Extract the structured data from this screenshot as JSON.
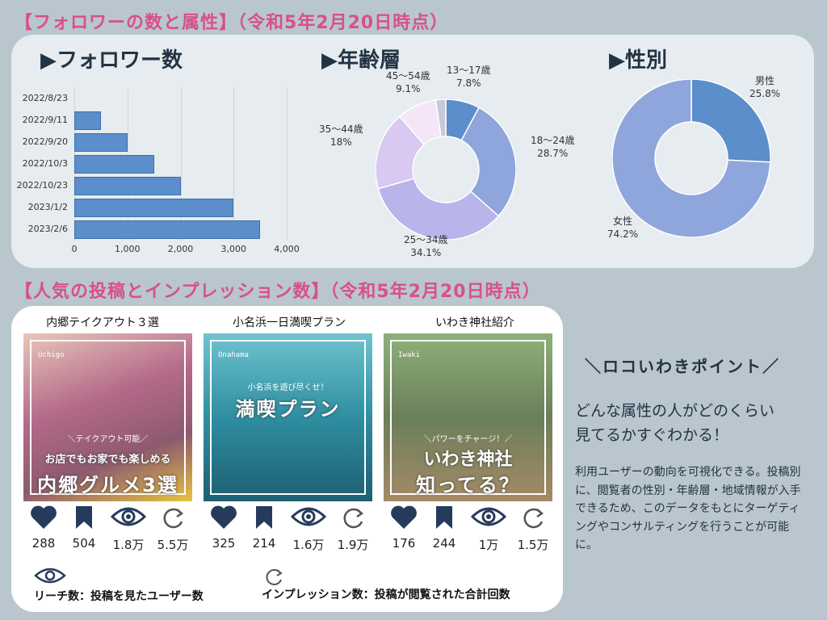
{
  "headings": {
    "followers": "【フォロワーの数と属性】（令和5年2月20日時点）",
    "posts": "【人気の投稿とインプレッション数】（令和5年2月20日時点）"
  },
  "subheads": {
    "followers": "▶フォロワー数",
    "age": "▶年齢層",
    "gender": "▶性別"
  },
  "chart_data": [
    {
      "type": "bar",
      "orientation": "horizontal",
      "title": "▶フォロワー数",
      "categories": [
        "2022/8/23",
        "2022/9/11",
        "2022/9/20",
        "2022/10/3",
        "2022/10/23",
        "2023/1/2",
        "2023/2/6"
      ],
      "values": [
        0,
        500,
        1000,
        1500,
        2000,
        3000,
        3500
      ],
      "xlim": [
        0,
        4000
      ],
      "xticks": [
        "0",
        "1,000",
        "2,000",
        "3,000",
        "4,000"
      ],
      "grid": true
    },
    {
      "type": "pie",
      "donut": true,
      "title": "▶年齢層",
      "slices": [
        {
          "label": "13〜17歳",
          "pct": "7.8%",
          "value": 7.8,
          "color": "#5b8ecb"
        },
        {
          "label": "18〜24歳",
          "pct": "28.7%",
          "value": 28.7,
          "color": "#8fa6dc"
        },
        {
          "label": "25〜34歳",
          "pct": "34.1%",
          "value": 34.1,
          "color": "#b9b4ea"
        },
        {
          "label": "35〜44歳",
          "pct": "18%",
          "value": 18,
          "color": "#d9c8f2"
        },
        {
          "label": "45〜54歳",
          "pct": "9.1%",
          "value": 9.1,
          "color": "#f4e6f7"
        },
        {
          "label": "",
          "pct": "",
          "value": 2.3,
          "color": "#c8c8d8"
        }
      ]
    },
    {
      "type": "pie",
      "donut": true,
      "title": "▶性別",
      "slices": [
        {
          "label": "男性",
          "pct": "25.8%",
          "value": 25.8,
          "color": "#5b8ecb"
        },
        {
          "label": "女性",
          "pct": "74.2%",
          "value": 74.2,
          "color": "#8fa6dc"
        }
      ]
    }
  ],
  "posts": [
    {
      "title": "内郷テイクアウト３選",
      "thumb": {
        "tag": "Uchigo",
        "small": "＼テイクアウト可能／",
        "mid": "お店でもお家でも楽しめる",
        "big": "内郷グルメ3選",
        "bg": "#d8a0a8"
      },
      "stats": {
        "likes": "288",
        "saves": "504",
        "reach": "1.8万",
        "impressions": "5.5万"
      }
    },
    {
      "title": "小名浜一日満喫プラン",
      "thumb": {
        "tag": "Onahama",
        "small": "小名浜を遊び尽くせ！",
        "mid": "",
        "big": "満喫プラン",
        "bg": "#2f8ea1"
      },
      "stats": {
        "likes": "325",
        "saves": "214",
        "reach": "1.6万",
        "impressions": "1.9万"
      }
    },
    {
      "title": "いわき神社紹介",
      "thumb": {
        "tag": "Iwaki",
        "small": "＼パワーをチャージ！／",
        "mid": "いわき神社",
        "big": "知ってる？",
        "bg": "#6a7f5a"
      },
      "stats": {
        "likes": "176",
        "saves": "244",
        "reach": "1万",
        "impressions": "1.5万"
      }
    }
  ],
  "legend": {
    "reach": "リーチ数：投稿を見たユーザー数",
    "impressions": "インプレッション数：投稿が閲覧された合計回数"
  },
  "point": {
    "title": "＼ロコいわきポイント／",
    "lead1": "どんな属性の人がどのくらい",
    "lead2": "見てるかすぐわかる！",
    "body": "利用ユーザーの動向を可視化できる。投稿別に、閲覧者の性別・年齢層・地域情報が入手できるため、このデータをもとにターゲティングやコンサルティングを行うことが可能に。"
  },
  "colors": {
    "heading": "#d94f8c",
    "bar": "#5b8ecb",
    "icon": "#263a5c"
  },
  "icons": [
    "heart-icon",
    "bookmark-icon",
    "eye-icon",
    "refresh-icon"
  ]
}
